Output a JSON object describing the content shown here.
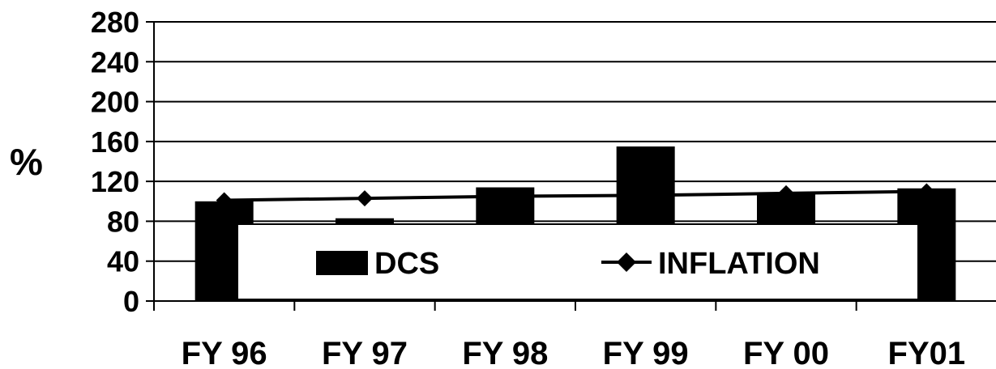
{
  "chart_data": {
    "type": "bar",
    "categories": [
      "FY 96",
      "FY 97",
      "FY 98",
      "FY 99",
      "FY 00",
      "FY01"
    ],
    "series": [
      {
        "name": "DCS",
        "type": "bar",
        "values": [
          100,
          83,
          114,
          155,
          109,
          113
        ]
      },
      {
        "name": "INFLATION",
        "type": "line",
        "values": [
          101,
          103,
          105,
          106,
          108,
          110
        ]
      }
    ],
    "ylabel": "%",
    "xlabel": "",
    "ylim": [
      0,
      280
    ],
    "yticks": [
      0,
      40,
      80,
      120,
      160,
      200,
      240,
      280
    ],
    "grid": true,
    "legend": "bottom-center inside plot",
    "colors": {
      "bar": "#000000",
      "line": "#000000",
      "background": "#ffffff"
    }
  }
}
